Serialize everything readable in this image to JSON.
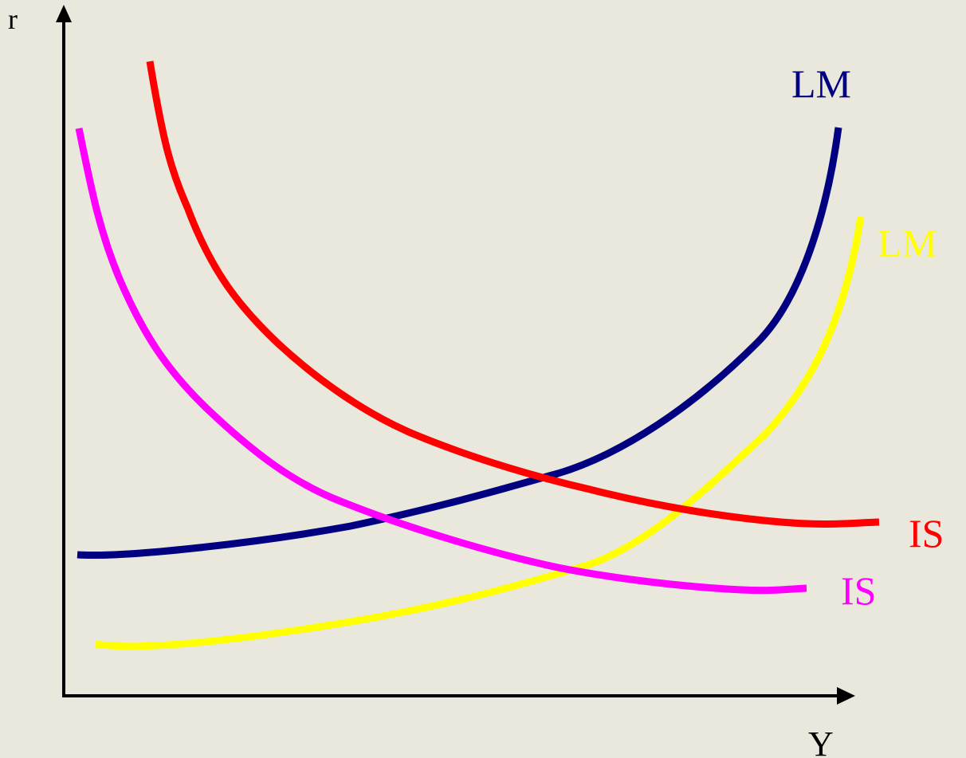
{
  "background": "#EAE8DD",
  "axes": {
    "y_label": "r",
    "x_label": "Y",
    "color": "#000000"
  },
  "curves": [
    {
      "id": "lm-navy",
      "label": "LM",
      "color": "#000080"
    },
    {
      "id": "lm-yellow",
      "label": "LM",
      "color": "#FFFF00"
    },
    {
      "id": "is-red",
      "label": "IS",
      "color": "#FF0000"
    },
    {
      "id": "is-magenta",
      "label": "IS",
      "color": "#FF00FF"
    }
  ]
}
